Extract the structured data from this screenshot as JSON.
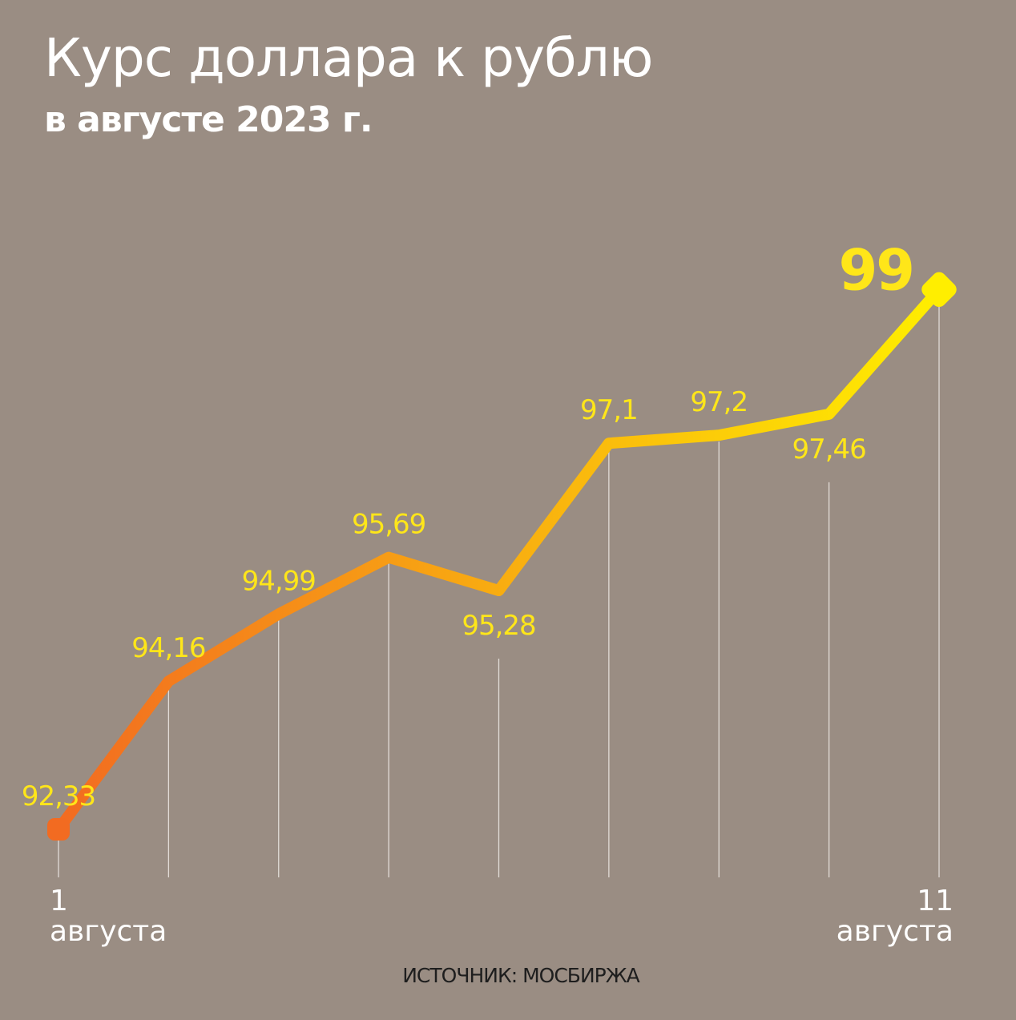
{
  "chart_data": {
    "type": "line",
    "title": "Курс доллара к рублю",
    "subtitle": "в августе 2023 г.",
    "x_tick_labels": [
      {
        "day": "1",
        "month": "августа"
      },
      {
        "day": "11",
        "month": "августа"
      }
    ],
    "values": [
      92.33,
      94.16,
      94.99,
      95.69,
      95.28,
      97.1,
      97.2,
      97.46,
      99
    ],
    "data_labels": [
      "92,33",
      "94,16",
      "94,99",
      "95,69",
      "95,28",
      "97,1",
      "97,2",
      "97,46",
      "99"
    ],
    "ylim": [
      92.33,
      99
    ],
    "grid": false,
    "legend": "none",
    "line_gradient": [
      "#f26b21",
      "#ffee00"
    ],
    "label_color": "#ffe619",
    "source": "ИСТОЧНИК: МОСБИРЖА"
  },
  "colors": {
    "background": "#9a8d83",
    "text": "#ffffff",
    "dropline": "#e2dcd7"
  }
}
